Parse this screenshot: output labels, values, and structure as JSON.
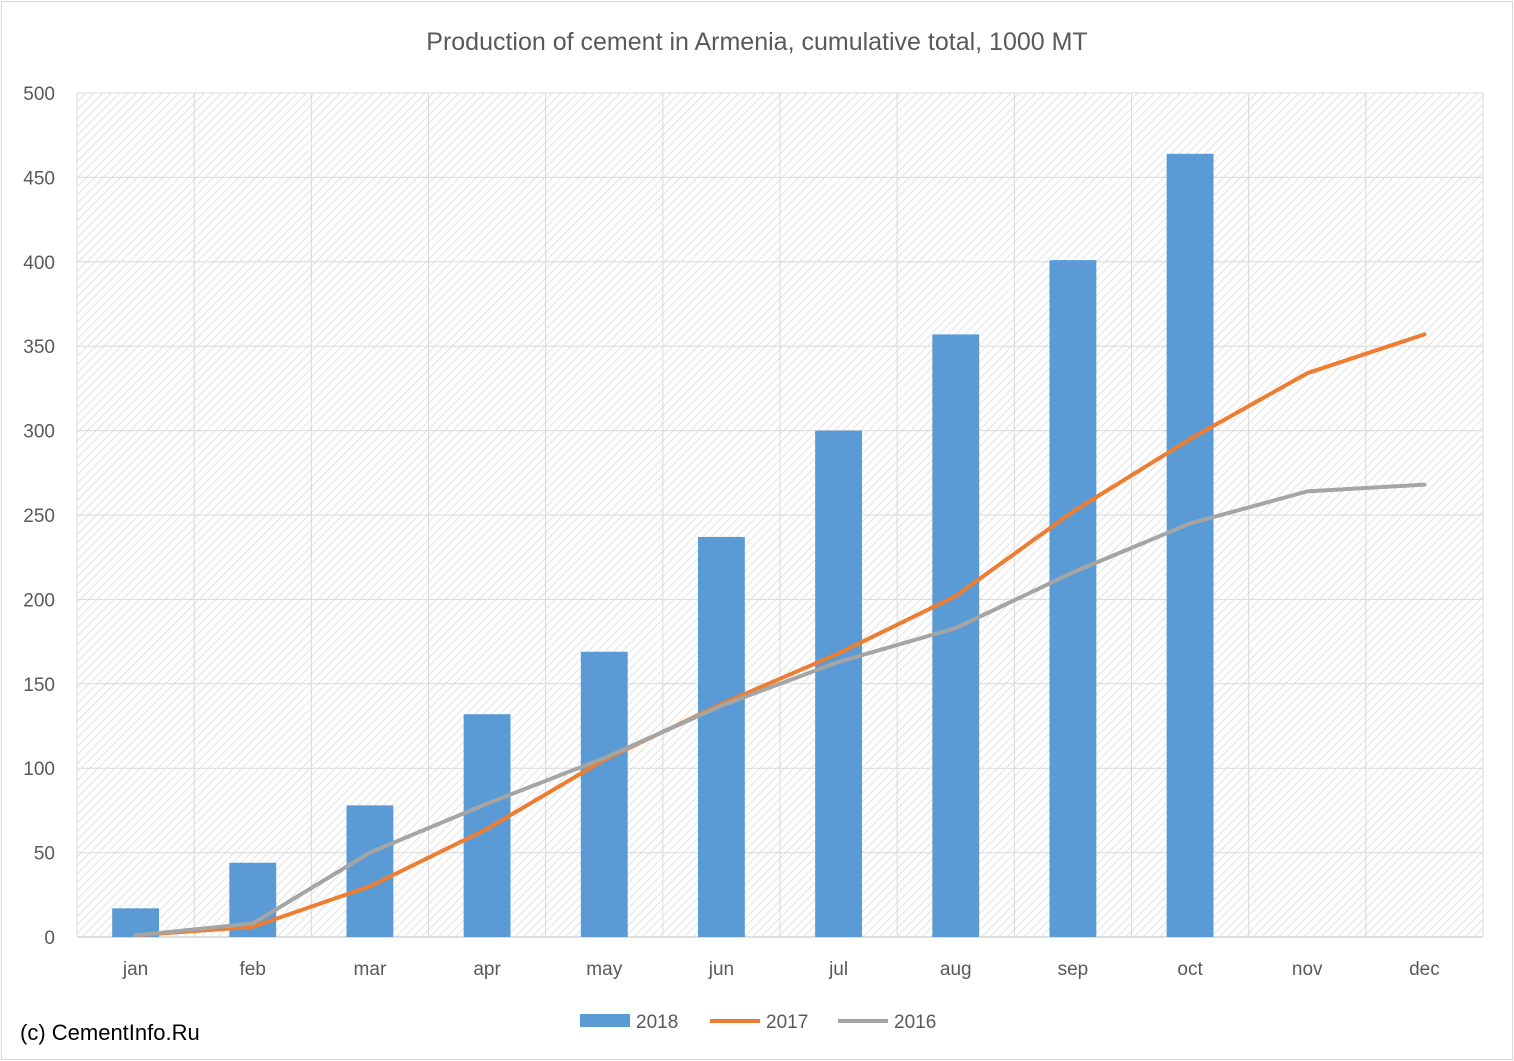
{
  "chart_data": {
    "type": "bar",
    "title": "Production of cement in Armenia, cumulative total, 1000 MT",
    "categories": [
      "jan",
      "feb",
      "mar",
      "apr",
      "may",
      "jun",
      "jul",
      "aug",
      "sep",
      "oct",
      "nov",
      "dec"
    ],
    "ylim": [
      0,
      500
    ],
    "yticks": [
      "0",
      "50",
      "100",
      "150",
      "200",
      "250",
      "300",
      "350",
      "400",
      "450",
      "500"
    ],
    "grid": true,
    "legend_position": "bottom",
    "series": [
      {
        "name": "2018",
        "type": "bar",
        "color": "#5b9bd5",
        "values": [
          17,
          44,
          78,
          132,
          169,
          237,
          300,
          357,
          401,
          464,
          null,
          null
        ]
      },
      {
        "name": "2017",
        "type": "line",
        "color": "#ed7d31",
        "values": [
          1,
          6,
          30,
          64,
          105,
          138,
          168,
          202,
          252,
          295,
          334,
          357
        ]
      },
      {
        "name": "2016",
        "type": "line",
        "color": "#a5a5a5",
        "values": [
          1,
          8,
          50,
          79,
          106,
          137,
          163,
          183,
          216,
          245,
          264,
          268
        ]
      }
    ]
  },
  "credit": "(c) CementInfo.Ru"
}
